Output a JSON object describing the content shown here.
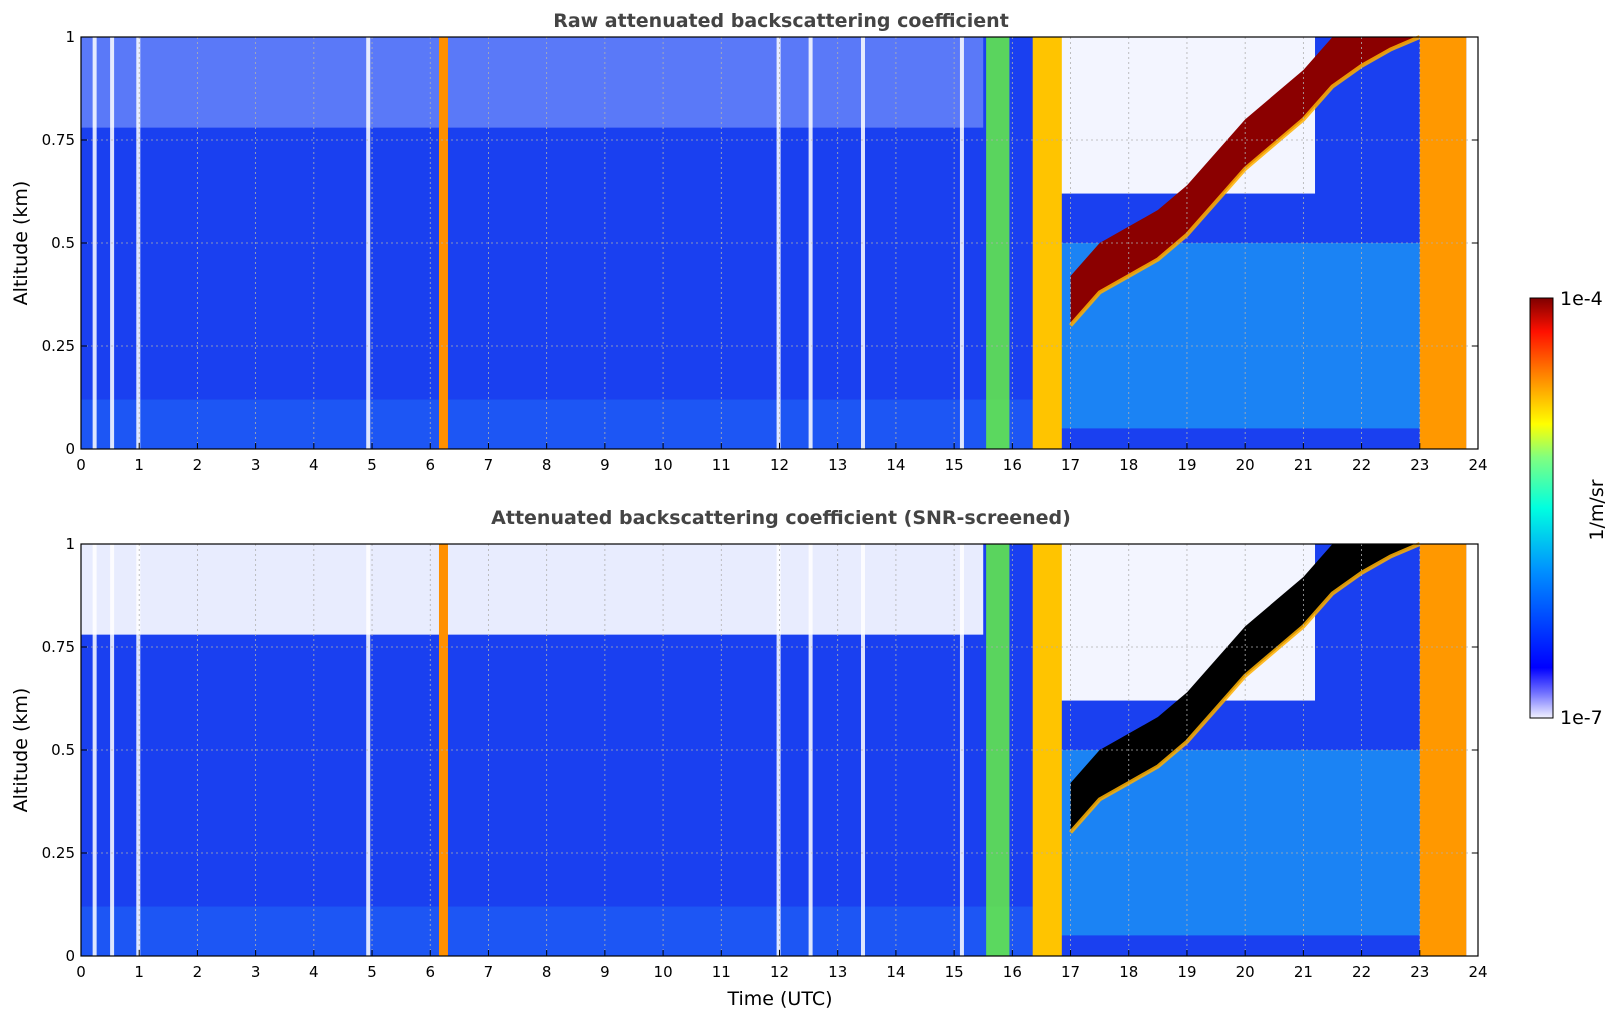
{
  "chart_data": [
    {
      "type": "heatmap",
      "title": "Raw attenuated backscattering coefficient",
      "xlabel": "",
      "ylabel": "Altitude (km)",
      "xlim": [
        0,
        24
      ],
      "ylim": [
        0,
        1
      ],
      "x_ticks": [
        "0",
        "1",
        "2",
        "3",
        "4",
        "5",
        "6",
        "7",
        "8",
        "9",
        "10",
        "11",
        "12",
        "13",
        "14",
        "15",
        "16",
        "17",
        "18",
        "19",
        "20",
        "21",
        "22",
        "23",
        "24"
      ],
      "y_ticks": [
        "0",
        "0.25",
        "0.5",
        "0.75",
        "1"
      ],
      "grid": true,
      "cloud_layer_base_km": [
        [
          17.0,
          0.3
        ],
        [
          17.5,
          0.38
        ],
        [
          18.0,
          0.42
        ],
        [
          18.5,
          0.46
        ],
        [
          19.0,
          0.52
        ],
        [
          19.5,
          0.6
        ],
        [
          20.0,
          0.68
        ],
        [
          20.5,
          0.74
        ],
        [
          21.0,
          0.8
        ],
        [
          21.5,
          0.88
        ],
        [
          22.0,
          0.93
        ],
        [
          22.5,
          0.97
        ],
        [
          23.0,
          1.0
        ]
      ]
    },
    {
      "type": "heatmap",
      "title": "Attenuated backscattering coefficient (SNR-screened)",
      "xlabel": "Time (UTC)",
      "ylabel": "Altitude (km)",
      "xlim": [
        0,
        24
      ],
      "ylim": [
        0,
        1
      ],
      "x_ticks": [
        "0",
        "1",
        "2",
        "3",
        "4",
        "5",
        "6",
        "7",
        "8",
        "9",
        "10",
        "11",
        "12",
        "13",
        "14",
        "15",
        "16",
        "17",
        "18",
        "19",
        "20",
        "21",
        "22",
        "23",
        "24"
      ],
      "y_ticks": [
        "0",
        "0.25",
        "0.5",
        "0.75",
        "1"
      ],
      "grid": true,
      "cloud_layer_base_km": [
        [
          17.0,
          0.3
        ],
        [
          17.5,
          0.38
        ],
        [
          18.0,
          0.42
        ],
        [
          18.5,
          0.46
        ],
        [
          19.0,
          0.52
        ],
        [
          19.5,
          0.6
        ],
        [
          20.0,
          0.68
        ],
        [
          20.5,
          0.74
        ],
        [
          21.0,
          0.8
        ],
        [
          21.5,
          0.88
        ],
        [
          22.0,
          0.93
        ],
        [
          22.5,
          0.97
        ],
        [
          23.0,
          1.0
        ]
      ]
    }
  ],
  "colorbar": {
    "label": "1/m/sr",
    "max_label": "1e-4",
    "min_label": "1e-7",
    "colormap": "jet",
    "scale": "log"
  }
}
